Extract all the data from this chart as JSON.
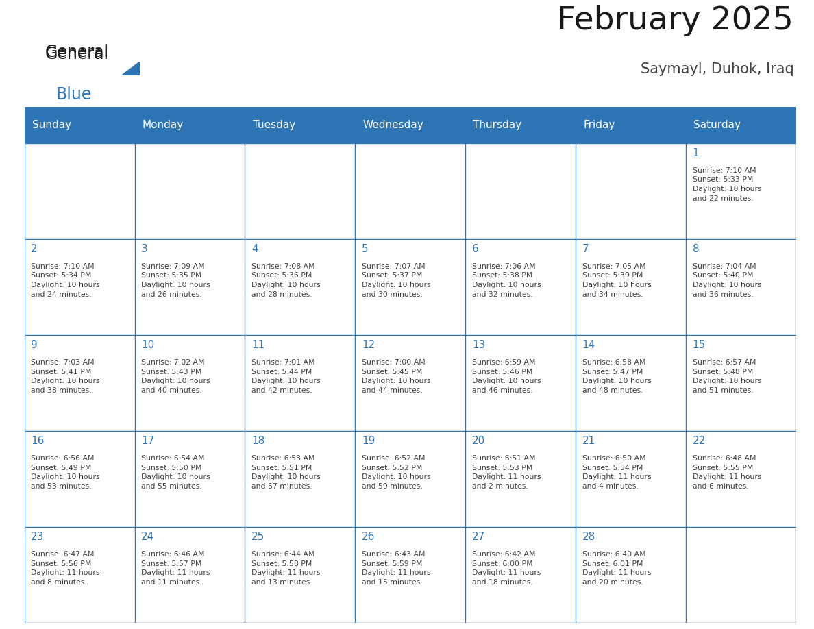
{
  "title": "February 2025",
  "subtitle": "Saymayl, Duhok, Iraq",
  "days_of_week": [
    "Sunday",
    "Monday",
    "Tuesday",
    "Wednesday",
    "Thursday",
    "Friday",
    "Saturday"
  ],
  "header_bg": "#2E75B6",
  "header_text": "#FFFFFF",
  "cell_bg": "#FFFFFF",
  "border_color": "#2E75B6",
  "day_number_color": "#2E75B6",
  "cell_text_color": "#404040",
  "title_color": "#1a1a1a",
  "subtitle_color": "#404040",
  "logo_general_color": "#1a1a1a",
  "logo_blue_color": "#2E75B6",
  "weeks": [
    [
      {
        "day": null,
        "info": null
      },
      {
        "day": null,
        "info": null
      },
      {
        "day": null,
        "info": null
      },
      {
        "day": null,
        "info": null
      },
      {
        "day": null,
        "info": null
      },
      {
        "day": null,
        "info": null
      },
      {
        "day": 1,
        "info": "Sunrise: 7:10 AM\nSunset: 5:33 PM\nDaylight: 10 hours\nand 22 minutes."
      }
    ],
    [
      {
        "day": 2,
        "info": "Sunrise: 7:10 AM\nSunset: 5:34 PM\nDaylight: 10 hours\nand 24 minutes."
      },
      {
        "day": 3,
        "info": "Sunrise: 7:09 AM\nSunset: 5:35 PM\nDaylight: 10 hours\nand 26 minutes."
      },
      {
        "day": 4,
        "info": "Sunrise: 7:08 AM\nSunset: 5:36 PM\nDaylight: 10 hours\nand 28 minutes."
      },
      {
        "day": 5,
        "info": "Sunrise: 7:07 AM\nSunset: 5:37 PM\nDaylight: 10 hours\nand 30 minutes."
      },
      {
        "day": 6,
        "info": "Sunrise: 7:06 AM\nSunset: 5:38 PM\nDaylight: 10 hours\nand 32 minutes."
      },
      {
        "day": 7,
        "info": "Sunrise: 7:05 AM\nSunset: 5:39 PM\nDaylight: 10 hours\nand 34 minutes."
      },
      {
        "day": 8,
        "info": "Sunrise: 7:04 AM\nSunset: 5:40 PM\nDaylight: 10 hours\nand 36 minutes."
      }
    ],
    [
      {
        "day": 9,
        "info": "Sunrise: 7:03 AM\nSunset: 5:41 PM\nDaylight: 10 hours\nand 38 minutes."
      },
      {
        "day": 10,
        "info": "Sunrise: 7:02 AM\nSunset: 5:43 PM\nDaylight: 10 hours\nand 40 minutes."
      },
      {
        "day": 11,
        "info": "Sunrise: 7:01 AM\nSunset: 5:44 PM\nDaylight: 10 hours\nand 42 minutes."
      },
      {
        "day": 12,
        "info": "Sunrise: 7:00 AM\nSunset: 5:45 PM\nDaylight: 10 hours\nand 44 minutes."
      },
      {
        "day": 13,
        "info": "Sunrise: 6:59 AM\nSunset: 5:46 PM\nDaylight: 10 hours\nand 46 minutes."
      },
      {
        "day": 14,
        "info": "Sunrise: 6:58 AM\nSunset: 5:47 PM\nDaylight: 10 hours\nand 48 minutes."
      },
      {
        "day": 15,
        "info": "Sunrise: 6:57 AM\nSunset: 5:48 PM\nDaylight: 10 hours\nand 51 minutes."
      }
    ],
    [
      {
        "day": 16,
        "info": "Sunrise: 6:56 AM\nSunset: 5:49 PM\nDaylight: 10 hours\nand 53 minutes."
      },
      {
        "day": 17,
        "info": "Sunrise: 6:54 AM\nSunset: 5:50 PM\nDaylight: 10 hours\nand 55 minutes."
      },
      {
        "day": 18,
        "info": "Sunrise: 6:53 AM\nSunset: 5:51 PM\nDaylight: 10 hours\nand 57 minutes."
      },
      {
        "day": 19,
        "info": "Sunrise: 6:52 AM\nSunset: 5:52 PM\nDaylight: 10 hours\nand 59 minutes."
      },
      {
        "day": 20,
        "info": "Sunrise: 6:51 AM\nSunset: 5:53 PM\nDaylight: 11 hours\nand 2 minutes."
      },
      {
        "day": 21,
        "info": "Sunrise: 6:50 AM\nSunset: 5:54 PM\nDaylight: 11 hours\nand 4 minutes."
      },
      {
        "day": 22,
        "info": "Sunrise: 6:48 AM\nSunset: 5:55 PM\nDaylight: 11 hours\nand 6 minutes."
      }
    ],
    [
      {
        "day": 23,
        "info": "Sunrise: 6:47 AM\nSunset: 5:56 PM\nDaylight: 11 hours\nand 8 minutes."
      },
      {
        "day": 24,
        "info": "Sunrise: 6:46 AM\nSunset: 5:57 PM\nDaylight: 11 hours\nand 11 minutes."
      },
      {
        "day": 25,
        "info": "Sunrise: 6:44 AM\nSunset: 5:58 PM\nDaylight: 11 hours\nand 13 minutes."
      },
      {
        "day": 26,
        "info": "Sunrise: 6:43 AM\nSunset: 5:59 PM\nDaylight: 11 hours\nand 15 minutes."
      },
      {
        "day": 27,
        "info": "Sunrise: 6:42 AM\nSunset: 6:00 PM\nDaylight: 11 hours\nand 18 minutes."
      },
      {
        "day": 28,
        "info": "Sunrise: 6:40 AM\nSunset: 6:01 PM\nDaylight: 11 hours\nand 20 minutes."
      },
      {
        "day": null,
        "info": null
      }
    ]
  ],
  "figsize": [
    11.88,
    9.18
  ],
  "dpi": 100
}
